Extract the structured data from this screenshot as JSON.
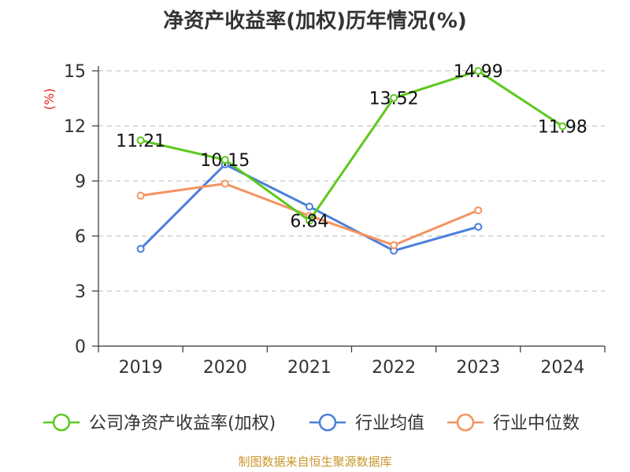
{
  "chart_data": {
    "type": "line",
    "title": "净资产收益率(加权)历年情况(%)",
    "ylabel": "(%)",
    "xlabel": "",
    "ylim": [
      0,
      15
    ],
    "yticks": [
      0,
      3,
      6,
      9,
      12,
      15
    ],
    "categories": [
      "2019",
      "2020",
      "2021",
      "2022",
      "2023",
      "2024"
    ],
    "series": [
      {
        "name": "公司净资产收益率(加权)",
        "color": "#5cc91e",
        "values": [
          11.21,
          10.15,
          6.84,
          13.52,
          14.99,
          11.98
        ],
        "labels": [
          "11.21",
          "10.15",
          "6.84",
          "13.52",
          "14.99",
          "11.98"
        ]
      },
      {
        "name": "行业均值",
        "color": "#4a7fdc",
        "values": [
          5.3,
          9.9,
          7.6,
          5.2,
          6.5,
          null
        ]
      },
      {
        "name": "行业中位数",
        "color": "#f5935f",
        "values": [
          8.2,
          8.85,
          7.1,
          5.5,
          7.4,
          null
        ]
      }
    ],
    "legend_position": "bottom",
    "grid": true,
    "source": "制图数据来自恒生聚源数据库",
    "colors": {
      "axis": "#333333",
      "grid": "#c8c8c8",
      "unit": "#e02020",
      "source": "#c8962a"
    }
  }
}
